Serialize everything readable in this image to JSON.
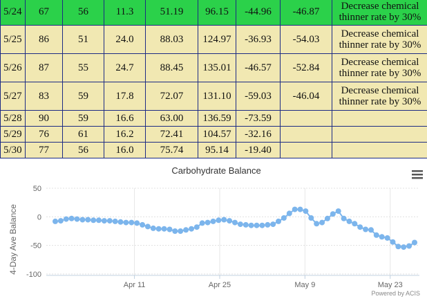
{
  "table": {
    "rows": [
      {
        "date": "5/24",
        "c1": "67",
        "c2": "56",
        "c3": "11.3",
        "c4": "51.19",
        "c5": "96.15",
        "c6": "-44.96",
        "c7": "-46.87",
        "rec": "Decrease chemical thinner rate by 30%",
        "style": "green"
      },
      {
        "date": "5/25",
        "c1": "86",
        "c2": "51",
        "c3": "24.0",
        "c4": "88.03",
        "c5": "124.97",
        "c6": "-36.93",
        "c7": "-54.03",
        "rec": "Decrease chemical thinner rate by 30%",
        "style": "cream"
      },
      {
        "date": "5/26",
        "c1": "87",
        "c2": "55",
        "c3": "24.7",
        "c4": "88.45",
        "c5": "135.01",
        "c6": "-46.57",
        "c7": "-52.84",
        "rec": "Decrease chemical thinner rate by 30%",
        "style": "cream"
      },
      {
        "date": "5/27",
        "c1": "83",
        "c2": "59",
        "c3": "17.8",
        "c4": "72.07",
        "c5": "131.10",
        "c6": "-59.03",
        "c7": "-46.04",
        "rec": "Decrease chemical thinner rate by 30%",
        "style": "cream"
      },
      {
        "date": "5/28",
        "c1": "90",
        "c2": "59",
        "c3": "16.6",
        "c4": "63.00",
        "c5": "136.59",
        "c6": "-73.59",
        "c7": "",
        "rec": "",
        "style": "cream"
      },
      {
        "date": "5/29",
        "c1": "76",
        "c2": "61",
        "c3": "16.2",
        "c4": "72.41",
        "c5": "104.57",
        "c6": "-32.16",
        "c7": "",
        "rec": "",
        "style": "cream"
      },
      {
        "date": "5/30",
        "c1": "77",
        "c2": "56",
        "c3": "16.0",
        "c4": "75.74",
        "c5": "95.14",
        "c6": "-19.40",
        "c7": "",
        "rec": "",
        "style": "cream"
      }
    ]
  },
  "menu_icon": "hamburger-menu-icon",
  "credits": "Powered by ACIS",
  "colors": {
    "green_row": "#2bd14a",
    "cream_row": "#f1e8b2",
    "border": "#1c2a84",
    "series": "#7cb5ec"
  },
  "chart_data": {
    "type": "line",
    "title": "Carbohydrate Balance",
    "xlabel": "",
    "ylabel": "4-Day Ave Balance",
    "ylim": [
      -100,
      50
    ],
    "yticks": [
      -100,
      -50,
      0,
      50
    ],
    "xticks": [
      "Apr 11",
      "Apr 25",
      "May 9",
      "May 23"
    ],
    "x_start": "Mar 29",
    "x_end": "May 27",
    "legend": "none",
    "grid": "dotted horizontal",
    "series": [
      {
        "name": "",
        "values": [
          -8,
          -7,
          -4,
          -3,
          -4,
          -5,
          -5,
          -6,
          -6,
          -7,
          -7,
          -8,
          -9,
          -10,
          -10,
          -11,
          -14,
          -17,
          -20,
          -21,
          -21,
          -22,
          -25,
          -25,
          -23,
          -21,
          -18,
          -11,
          -10,
          -8,
          -6,
          -5,
          -7,
          -10,
          -13,
          -14,
          -15,
          -15,
          -15,
          -14,
          -13,
          -8,
          -2,
          6,
          13,
          13,
          10,
          -2,
          -12,
          -10,
          -3,
          5,
          10,
          -3,
          -8,
          -12,
          -18,
          -22,
          -23,
          -32,
          -35,
          -37,
          -44,
          -52,
          -53,
          -51,
          -45
        ]
      }
    ]
  }
}
